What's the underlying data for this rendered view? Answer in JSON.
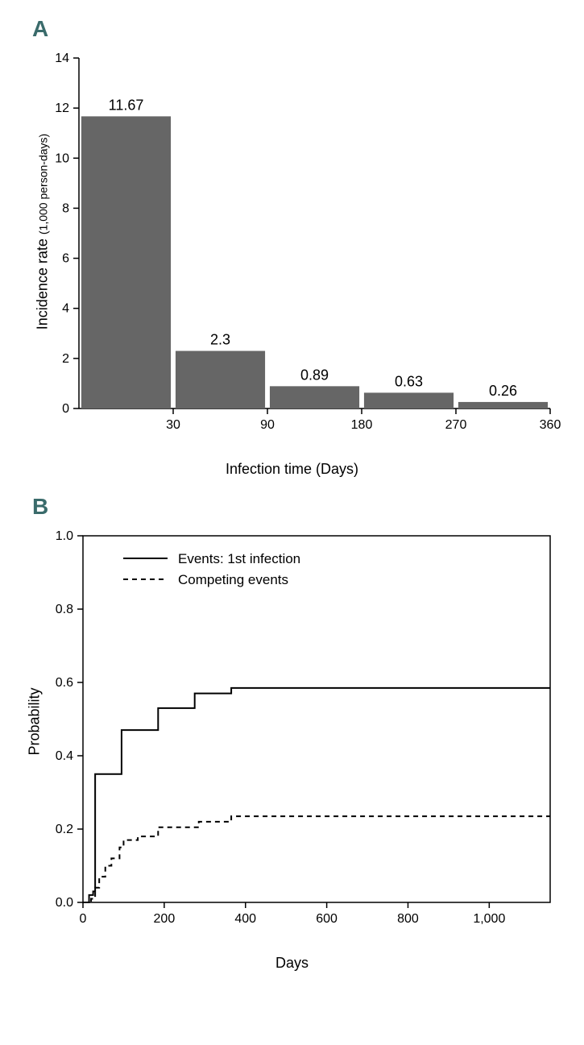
{
  "panelA": {
    "label": "A",
    "label_color": "#3a6b6b",
    "type": "bar",
    "ylabel_main": "Incidence rate",
    "ylabel_sub": "(1,000 person-days)",
    "xlabel": "Infection time (Days)",
    "ylabel_fontsize": 18,
    "ylabel_sub_fontsize": 14,
    "xlabel_fontsize": 18,
    "yticks": [
      0,
      2,
      4,
      6,
      8,
      10,
      12,
      14
    ],
    "ylim": [
      0,
      14
    ],
    "xticks": [
      "30",
      "90",
      "180",
      "270",
      "360"
    ],
    "bars": [
      {
        "value": 11.67,
        "label": "11.67"
      },
      {
        "value": 2.3,
        "label": "2.3"
      },
      {
        "value": 0.89,
        "label": "0.89"
      },
      {
        "value": 0.63,
        "label": "0.63"
      },
      {
        "value": 0.26,
        "label": "0.26"
      }
    ],
    "bar_color": "#666666",
    "bar_width_ratio": 0.95,
    "background_color": "#ffffff",
    "axis_color": "#000000",
    "tick_fontsize": 16,
    "barlabel_fontsize": 18
  },
  "panelB": {
    "label": "B",
    "label_color": "#3a6b6b",
    "type": "step-line",
    "ylabel": "Probability",
    "xlabel": "Days",
    "ylabel_fontsize": 18,
    "xlabel_fontsize": 18,
    "yticks": [
      "0.0",
      "0.2",
      "0.4",
      "0.6",
      "0.8",
      "1.0"
    ],
    "ytick_values": [
      0.0,
      0.2,
      0.4,
      0.6,
      0.8,
      1.0
    ],
    "ylim": [
      0,
      1.0
    ],
    "xticks": [
      "0",
      "200",
      "400",
      "600",
      "800",
      "1,000"
    ],
    "xtick_values": [
      0,
      200,
      400,
      600,
      800,
      1000
    ],
    "xlim": [
      0,
      1150
    ],
    "legend": [
      {
        "label": "Events: 1st infection",
        "style": "solid"
      },
      {
        "label": "Competing events",
        "style": "dashed"
      }
    ],
    "series1_color": "#000000",
    "series1_width": 2,
    "series1_dash": "none",
    "series1_points": [
      [
        0,
        0.0
      ],
      [
        15,
        0.02
      ],
      [
        25,
        0.03
      ],
      [
        30,
        0.35
      ],
      [
        90,
        0.35
      ],
      [
        95,
        0.47
      ],
      [
        180,
        0.47
      ],
      [
        185,
        0.53
      ],
      [
        270,
        0.53
      ],
      [
        275,
        0.57
      ],
      [
        360,
        0.57
      ],
      [
        365,
        0.585
      ],
      [
        1150,
        0.585
      ]
    ],
    "series2_color": "#000000",
    "series2_width": 2,
    "series2_dash": "6,5",
    "series2_points": [
      [
        0,
        0.0
      ],
      [
        20,
        0.01
      ],
      [
        30,
        0.04
      ],
      [
        40,
        0.07
      ],
      [
        55,
        0.1
      ],
      [
        70,
        0.12
      ],
      [
        90,
        0.15
      ],
      [
        100,
        0.17
      ],
      [
        130,
        0.17
      ],
      [
        135,
        0.18
      ],
      [
        180,
        0.18
      ],
      [
        185,
        0.205
      ],
      [
        280,
        0.205
      ],
      [
        285,
        0.22
      ],
      [
        360,
        0.22
      ],
      [
        365,
        0.235
      ],
      [
        1150,
        0.235
      ]
    ],
    "background_color": "#ffffff",
    "axis_color": "#000000",
    "tick_fontsize": 16,
    "legend_fontsize": 17
  }
}
